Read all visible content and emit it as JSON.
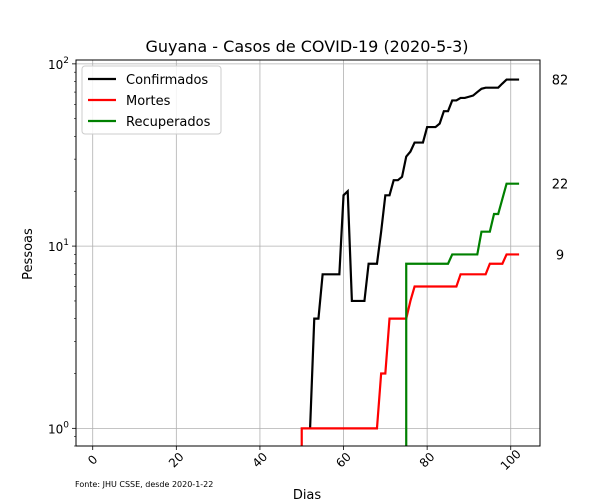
{
  "chart_data": {
    "type": "line",
    "title": "Guyana - Casos de COVID-19 (2020-5-3)",
    "xlabel": "Dias",
    "ylabel": "Pessoas",
    "yscale": "log",
    "xlim": [
      -4,
      107
    ],
    "ylim": [
      0.8,
      105
    ],
    "grid": true,
    "legend_position": "top-left",
    "footnote": "Fonte: JHU CSSE, desde 2020-1-22",
    "x_ticks": [
      0,
      20,
      40,
      60,
      80,
      100
    ],
    "y_ticks": [
      {
        "value": 1,
        "base": "10",
        "exp": "0"
      },
      {
        "value": 10,
        "base": "10",
        "exp": "1"
      },
      {
        "value": 100,
        "base": "10",
        "exp": "2"
      }
    ],
    "end_labels": [
      {
        "series": "Confirmados",
        "value": 82,
        "text": "82"
      },
      {
        "series": "Recuperados",
        "value": 22,
        "text": "22"
      },
      {
        "series": "Mortes",
        "value": 9,
        "text": "9"
      }
    ],
    "series": [
      {
        "name": "Confirmados",
        "color": "#000000",
        "points": [
          [
            52,
            1
          ],
          [
            53,
            4
          ],
          [
            54,
            4
          ],
          [
            55,
            7
          ],
          [
            59,
            7
          ],
          [
            60,
            19
          ],
          [
            61,
            20
          ],
          [
            62,
            5
          ],
          [
            63,
            5
          ],
          [
            64,
            5
          ],
          [
            65,
            5
          ],
          [
            66,
            8
          ],
          [
            67,
            8
          ],
          [
            68,
            8
          ],
          [
            69,
            12
          ],
          [
            70,
            19
          ],
          [
            71,
            19
          ],
          [
            72,
            23
          ],
          [
            73,
            23
          ],
          [
            74,
            24
          ],
          [
            75,
            31
          ],
          [
            76,
            33
          ],
          [
            77,
            37
          ],
          [
            78,
            37
          ],
          [
            79,
            37
          ],
          [
            80,
            45
          ],
          [
            81,
            45
          ],
          [
            82,
            45
          ],
          [
            83,
            47
          ],
          [
            84,
            55
          ],
          [
            85,
            55
          ],
          [
            86,
            63
          ],
          [
            87,
            63
          ],
          [
            88,
            65
          ],
          [
            89,
            65
          ],
          [
            90,
            66
          ],
          [
            91,
            67
          ],
          [
            92,
            70
          ],
          [
            93,
            73
          ],
          [
            94,
            74
          ],
          [
            95,
            74
          ],
          [
            96,
            74
          ],
          [
            97,
            74
          ],
          [
            98,
            78
          ],
          [
            99,
            82
          ],
          [
            100,
            82
          ],
          [
            101,
            82
          ],
          [
            102,
            82
          ]
        ]
      },
      {
        "name": "Mortes",
        "color": "#ff0000",
        "points": [
          [
            50,
            0.8
          ],
          [
            50,
            1
          ],
          [
            68,
            1
          ],
          [
            69,
            2
          ],
          [
            70,
            2
          ],
          [
            71,
            4
          ],
          [
            72,
            4
          ],
          [
            74,
            4
          ],
          [
            75,
            4
          ],
          [
            76,
            5
          ],
          [
            77,
            6
          ],
          [
            87,
            6
          ],
          [
            88,
            7
          ],
          [
            94,
            7
          ],
          [
            95,
            8
          ],
          [
            98,
            8
          ],
          [
            99,
            9
          ],
          [
            102,
            9
          ]
        ]
      },
      {
        "name": "Recuperados",
        "color": "#008000",
        "points": [
          [
            75,
            0.8
          ],
          [
            75,
            8
          ],
          [
            85,
            8
          ],
          [
            86,
            9
          ],
          [
            92,
            9
          ],
          [
            93,
            12
          ],
          [
            95,
            12
          ],
          [
            96,
            15
          ],
          [
            97,
            15
          ],
          [
            99,
            22
          ],
          [
            102,
            22
          ]
        ]
      }
    ]
  }
}
